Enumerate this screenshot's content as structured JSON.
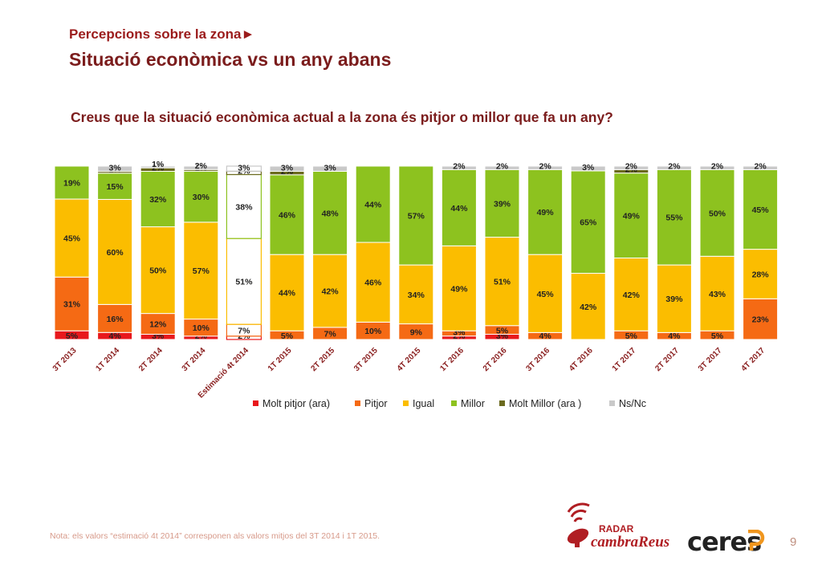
{
  "header": {
    "kicker": "Percepcions sobre la zona►",
    "title": "Situació econòmica vs un any abans"
  },
  "question": "Creus que la situació econòmica actual a la zona és pitjor o millor que fa un any?",
  "footer": {
    "note": "Nota: els valors “estimació 4t 2014” corresponen als valors mitjos del 3T 2014 i 1T 2015.",
    "page": "9",
    "logo_radar": "RADAR",
    "logo_cambra": "cambraReus",
    "logo_ceres": "ceres"
  },
  "chart_data": {
    "type": "bar",
    "stacked": true,
    "normalized": true,
    "title": "",
    "xlabel": "",
    "ylabel": "",
    "ylim": [
      0,
      100
    ],
    "grid": false,
    "legend_position": "bottom",
    "categories": [
      "3T 2013",
      "1T 2014",
      "2T 2014",
      "3T 2014",
      "Estimació 4t 2014",
      "1T 2015",
      "2T 2015",
      "3T 2015",
      "4T 2015",
      "1T 2016",
      "2T 2016",
      "3T 2016",
      "4T 2016",
      "1T 2017",
      "2T 2017",
      "3T 2017",
      "4T 2017"
    ],
    "highlight_category": "Estimació 4t 2014",
    "series": [
      {
        "name": "Molt pitjor (ara)",
        "color": "#e8181c",
        "values": [
          5,
          4,
          3,
          2,
          2,
          null,
          null,
          null,
          null,
          2,
          3,
          null,
          null,
          null,
          null,
          null,
          null
        ]
      },
      {
        "name": "Pitjor",
        "color": "#f56a14",
        "values": [
          31,
          16,
          12,
          10,
          7,
          5,
          7,
          10,
          9,
          3,
          5,
          4,
          null,
          5,
          4,
          5,
          23
        ]
      },
      {
        "name": "Igual",
        "color": "#fbbd00",
        "values": [
          45,
          60,
          50,
          57,
          51,
          44,
          42,
          46,
          34,
          49,
          51,
          45,
          42,
          42,
          39,
          43,
          28
        ]
      },
      {
        "name": "Millor",
        "color": "#8dc21f",
        "values": [
          19,
          15,
          32,
          30,
          38,
          46,
          48,
          44,
          57,
          44,
          39,
          49,
          65,
          49,
          55,
          50,
          45
        ]
      },
      {
        "name": "Molt Millor (ara )",
        "color": "#6b6a1e",
        "values": [
          null,
          1,
          2,
          1,
          2,
          2,
          null,
          null,
          null,
          null,
          null,
          null,
          null,
          2,
          null,
          null,
          null
        ]
      },
      {
        "name": "Ns/Nc",
        "color": "#c9c9c9",
        "values": [
          null,
          3,
          1,
          2,
          3,
          3,
          3,
          null,
          null,
          2,
          2,
          2,
          3,
          2,
          2,
          2,
          2
        ]
      }
    ]
  }
}
